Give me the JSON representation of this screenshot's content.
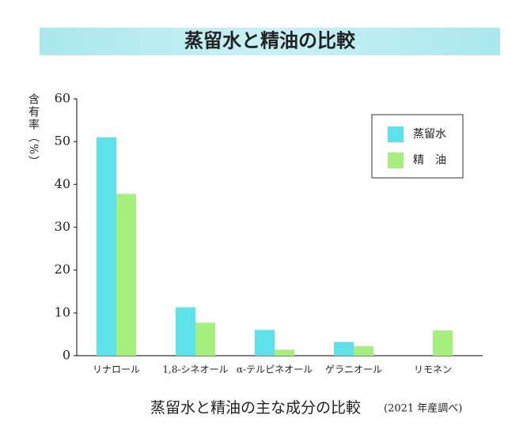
{
  "chart_data": {
    "type": "bar",
    "title": "蒸留水と精油の比較",
    "y_label": "含有率（%）",
    "categories": [
      "リナロール",
      "1,8-シネオール",
      "α-テルピネオール",
      "ゲラニオール",
      "リモネン"
    ],
    "series": [
      {
        "name": "蒸留水",
        "color": "#5fe1ea",
        "values": [
          51,
          11.3,
          6,
          3.2,
          0
        ]
      },
      {
        "name": "精　油",
        "color": "#a6ef7e",
        "values": [
          37.8,
          7.7,
          1.4,
          2.2,
          5.9
        ]
      }
    ],
    "ylim": [
      0,
      60
    ],
    "yticks": [
      0,
      10,
      20,
      30,
      40,
      50,
      60
    ],
    "grid": false,
    "legend": "upper right",
    "caption": "蒸留水と精油の主な成分の比較",
    "caption_note": "(2021 年産調べ)"
  }
}
